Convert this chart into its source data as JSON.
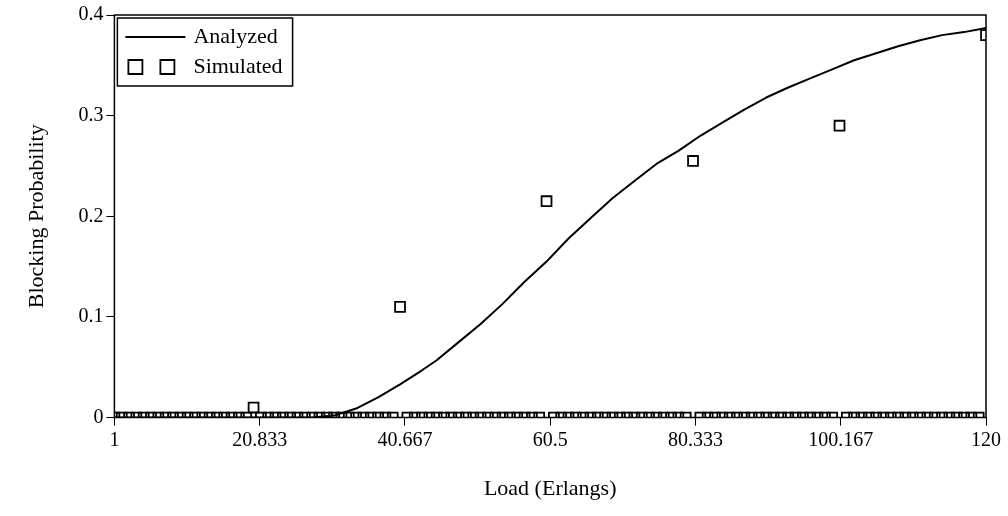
{
  "chart_data": {
    "type": "line",
    "xlabel": "Load (Erlangs)",
    "ylabel": "Blocking Probability",
    "xlim": [
      1,
      120
    ],
    "ylim": [
      0,
      0.4
    ],
    "xticks": [
      1,
      20.833,
      40.667,
      60.5,
      80.333,
      100.167,
      120
    ],
    "yticks": [
      0,
      0.1,
      0.2,
      0.3,
      0.4
    ],
    "grid": false,
    "legend": "top left",
    "series": [
      {
        "name": "Analyzed",
        "color": "#000000",
        "marker": "none",
        "line_style": "solid",
        "x": [
          1,
          10,
          20,
          28,
          31,
          34,
          37,
          40,
          43,
          45,
          48,
          51,
          54,
          57,
          60,
          63,
          66,
          69,
          72,
          75,
          78,
          81,
          84,
          87,
          90,
          93,
          96,
          99,
          102,
          105,
          108,
          111,
          114,
          117,
          120
        ],
        "values": [
          0,
          0,
          0,
          0,
          0.002,
          0.009,
          0.02,
          0.033,
          0.047,
          0.057,
          0.075,
          0.093,
          0.113,
          0.135,
          0.155,
          0.178,
          0.198,
          0.218,
          0.235,
          0.252,
          0.265,
          0.28,
          0.293,
          0.306,
          0.318,
          0.328,
          0.337,
          0.346,
          0.355,
          0.362,
          0.369,
          0.375,
          0.38,
          0.383,
          0.387
        ]
      },
      {
        "name": "Simulated",
        "type": "scatter",
        "color": "#000000",
        "marker": "square",
        "x": [
          1,
          2,
          3,
          4,
          5,
          6,
          7,
          8,
          9,
          10,
          11,
          12,
          13,
          14,
          15,
          16,
          17,
          18,
          19,
          20,
          21,
          22,
          23,
          24,
          25,
          26,
          27,
          28,
          29,
          30,
          31,
          32,
          33,
          34,
          35,
          36,
          37,
          38,
          39,
          40,
          41,
          42,
          43,
          44,
          45,
          46,
          47,
          48,
          49,
          50,
          51,
          52,
          53,
          54,
          55,
          56,
          57,
          58,
          59,
          60,
          61,
          62,
          63,
          64,
          65,
          66,
          67,
          68,
          69,
          70,
          71,
          72,
          73,
          74,
          75,
          76,
          77,
          78,
          79,
          80,
          81,
          82,
          83,
          84,
          85,
          86,
          87,
          88,
          89,
          90,
          91,
          92,
          93,
          94,
          95,
          96,
          97,
          98,
          99,
          100,
          101,
          102,
          103,
          104,
          105,
          106,
          107,
          108,
          109,
          110,
          111,
          112,
          113,
          114,
          115,
          116,
          117,
          118,
          119,
          120
        ],
        "values": [
          0,
          0,
          0,
          0,
          0,
          0,
          0,
          0,
          0,
          0,
          0,
          0,
          0,
          0,
          0,
          0,
          0,
          0,
          0,
          0.01,
          0,
          0,
          0,
          0,
          0,
          0,
          0,
          0,
          0,
          0,
          0,
          0,
          0,
          0,
          0,
          0,
          0,
          0,
          0,
          0.11,
          0,
          0,
          0,
          0,
          0,
          0,
          0,
          0,
          0,
          0,
          0,
          0,
          0,
          0,
          0,
          0,
          0,
          0,
          0,
          0.215,
          0,
          0,
          0,
          0,
          0,
          0,
          0,
          0,
          0,
          0,
          0,
          0,
          0,
          0,
          0,
          0,
          0,
          0,
          0,
          0.255,
          0,
          0,
          0,
          0,
          0,
          0,
          0,
          0,
          0,
          0,
          0,
          0,
          0,
          0,
          0,
          0,
          0,
          0,
          0,
          0.29,
          0,
          0,
          0,
          0,
          0,
          0,
          0,
          0,
          0,
          0,
          0,
          0,
          0,
          0,
          0,
          0,
          0,
          0,
          0,
          0.38
        ]
      }
    ]
  }
}
